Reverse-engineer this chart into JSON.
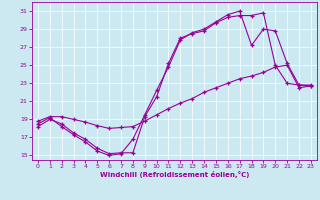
{
  "xlabel": "Windchill (Refroidissement éolien,°C)",
  "bg_color": "#cce8f0",
  "line_color": "#990099",
  "grid_color": "#ffffff",
  "xlim": [
    -0.5,
    23.5
  ],
  "ylim": [
    14.5,
    32.0
  ],
  "yticks": [
    15,
    17,
    19,
    21,
    23,
    25,
    27,
    29,
    31
  ],
  "xticks": [
    0,
    1,
    2,
    3,
    4,
    5,
    6,
    7,
    8,
    9,
    10,
    11,
    12,
    13,
    14,
    15,
    16,
    17,
    18,
    19,
    20,
    21,
    22,
    23
  ],
  "line1_x": [
    0,
    1,
    2,
    3,
    4,
    5,
    6,
    7,
    8,
    9,
    10,
    11,
    12,
    13,
    14,
    15,
    16,
    17,
    18,
    19,
    20,
    21,
    22,
    23
  ],
  "line1_y": [
    18.2,
    19.0,
    18.5,
    17.5,
    16.8,
    15.8,
    15.2,
    15.3,
    15.3,
    19.3,
    21.5,
    25.2,
    28.0,
    28.5,
    28.8,
    29.7,
    30.3,
    30.5,
    30.5,
    30.8,
    25.0,
    23.0,
    22.8,
    22.8
  ],
  "line2_x": [
    0,
    1,
    2,
    3,
    4,
    5,
    6,
    7,
    8,
    9,
    10,
    11,
    12,
    13,
    14,
    15,
    16,
    17,
    18,
    19,
    20,
    21,
    22,
    23
  ],
  "line2_y": [
    18.5,
    19.2,
    18.2,
    17.3,
    16.5,
    15.5,
    15.0,
    15.2,
    16.8,
    19.5,
    22.2,
    24.8,
    27.8,
    28.6,
    29.0,
    29.8,
    30.6,
    31.0,
    27.2,
    29.0,
    28.8,
    25.2,
    22.8,
    22.7
  ],
  "line3_x": [
    0,
    1,
    2,
    3,
    4,
    5,
    6,
    7,
    8,
    9,
    10,
    11,
    12,
    13,
    14,
    15,
    16,
    17,
    18,
    19,
    20,
    21,
    22,
    23
  ],
  "line3_y": [
    18.8,
    19.3,
    19.3,
    19.0,
    18.7,
    18.3,
    18.0,
    18.1,
    18.2,
    18.8,
    19.5,
    20.2,
    20.8,
    21.3,
    22.0,
    22.5,
    23.0,
    23.5,
    23.8,
    24.2,
    24.8,
    25.0,
    22.5,
    22.7
  ]
}
